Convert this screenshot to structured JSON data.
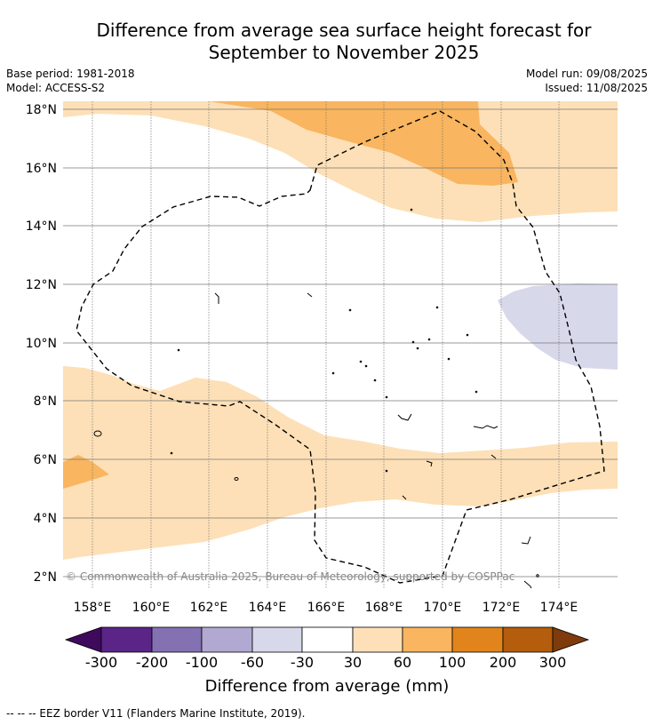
{
  "title": {
    "line1": "Difference from average sea surface height forecast for",
    "line2": "September to November 2025"
  },
  "meta": {
    "base_period": "Base period: 1981-2018",
    "model": "Model: ACCESS-S2",
    "model_run": "Model run: 09/08/2025",
    "issued": "Issued: 11/08/2025"
  },
  "map": {
    "lat_labels": [
      "18°N",
      "16°N",
      "14°N",
      "12°N",
      "10°N",
      "8°N",
      "6°N",
      "4°N",
      "2°N"
    ],
    "lon_labels": [
      "158°E",
      "160°E",
      "162°E",
      "164°E",
      "166°E",
      "168°E",
      "170°E",
      "172°E",
      "174°E"
    ],
    "copyright": "© Commonwealth of Australia 2025, Bureau of Meteorology, supported by COSPPac",
    "colors": {
      "light_orange": "#fde0b7",
      "mid_orange": "#f9b55f",
      "light_purple": "#d8d8eb"
    }
  },
  "colorbar": {
    "ticks": [
      "-300",
      "-200",
      "-100",
      "-60",
      "-30",
      "30",
      "60",
      "100",
      "200",
      "300"
    ],
    "colors": [
      "#5a2587",
      "#8371b1",
      "#b1a9d2",
      "#d8d8eb",
      "#ffffff",
      "#fde0b7",
      "#f9b55f",
      "#e1841c",
      "#b45d0c"
    ],
    "under_color": "#3f0a5e",
    "over_color": "#7f3b0c",
    "label": "Difference from average (mm)"
  },
  "footnote": "--  --  -- EEZ border V11 (Flanders Marine Institute, 2019)."
}
